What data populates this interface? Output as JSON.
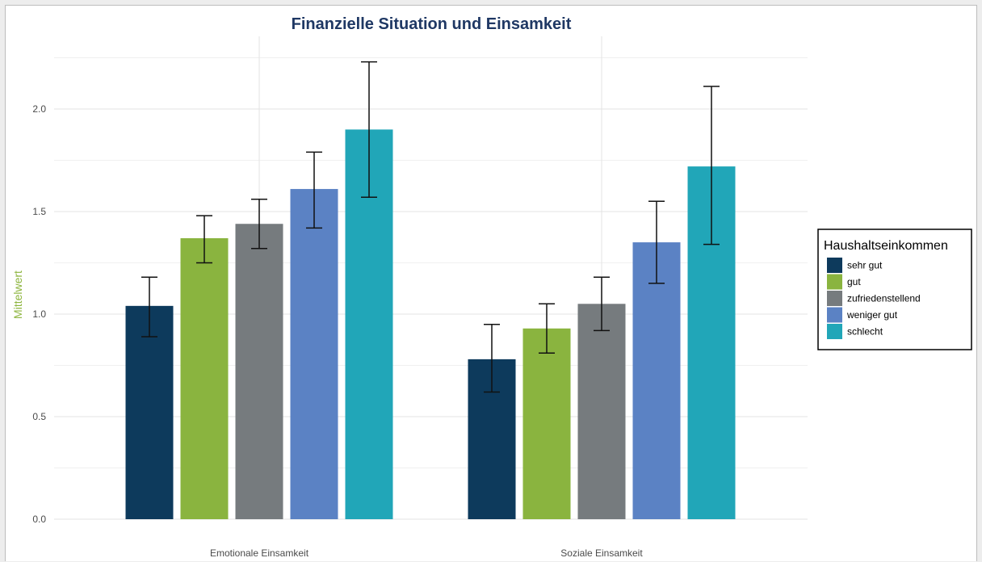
{
  "chart_data": {
    "type": "bar",
    "title": "Finanzielle Situation und Einsamkeit",
    "xlabel": "",
    "ylabel": "Mittelwert",
    "ylim": [
      0,
      2.3
    ],
    "yticks": [
      "0.0",
      "0.5",
      "1.0",
      "1.5",
      "2.0"
    ],
    "grid": true,
    "categories": [
      "Emotionale Einsamkeit",
      "Soziale Einsamkeit"
    ],
    "series": [
      {
        "name": "sehr gut",
        "color": "#0d3a5c",
        "values": [
          1.04,
          0.78
        ],
        "error_low": [
          0.89,
          0.62
        ],
        "error_high": [
          1.18,
          0.95
        ]
      },
      {
        "name": "gut",
        "color": "#8ab43f",
        "values": [
          1.37,
          0.93
        ],
        "error_low": [
          1.25,
          0.81
        ],
        "error_high": [
          1.48,
          1.05
        ]
      },
      {
        "name": "zufriedenstellend",
        "color": "#767b7e",
        "values": [
          1.44,
          1.05
        ],
        "error_low": [
          1.32,
          0.92
        ],
        "error_high": [
          1.56,
          1.18
        ]
      },
      {
        "name": "weniger gut",
        "color": "#5b82c4",
        "values": [
          1.61,
          1.35
        ],
        "error_low": [
          1.42,
          1.15
        ],
        "error_high": [
          1.79,
          1.55
        ]
      },
      {
        "name": "schlecht",
        "color": "#21a6b8",
        "values": [
          1.9,
          1.72
        ],
        "error_low": [
          1.57,
          1.34
        ],
        "error_high": [
          2.23,
          2.11
        ]
      }
    ],
    "legend": {
      "title": "Haushaltseinkommen",
      "position": "right"
    }
  }
}
